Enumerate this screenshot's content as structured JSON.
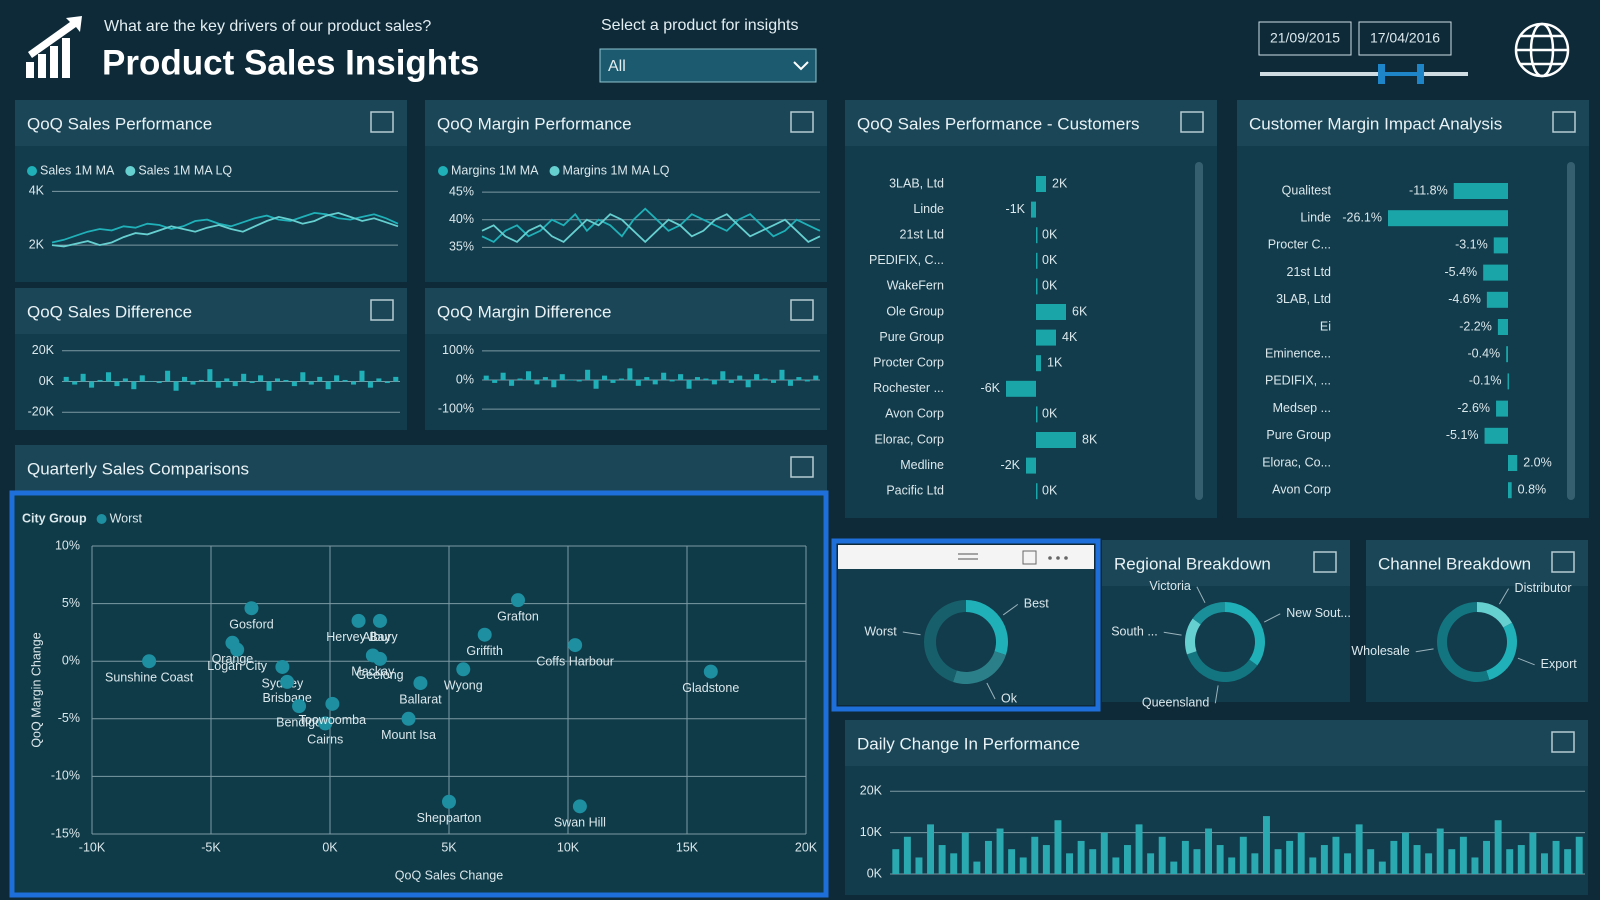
{
  "header": {
    "question": "What are the key drivers of our product sales?",
    "title": "Product Sales Insights",
    "filter_label": "Select a product for insights",
    "filter_value": "All",
    "date_start": "21/09/2015",
    "date_end": "17/04/2016"
  },
  "chart_data": [
    {
      "type": "line",
      "title": "QoQ Sales Performance",
      "ylim": [
        1000,
        4500
      ],
      "yticks": [
        {
          "value": 2000,
          "label": "2K"
        },
        {
          "value": 4000,
          "label": "4K"
        }
      ],
      "series": [
        {
          "name": "Sales 1M MA",
          "color": "#1fb0b8",
          "values": [
            2100,
            2200,
            2350,
            2500,
            2600,
            2550,
            2700,
            2650,
            2800,
            2750,
            2600,
            2700,
            2900,
            2950,
            2800,
            2700,
            2850,
            3000,
            3100,
            2950,
            2900,
            3050,
            3200,
            3150,
            3000,
            2950,
            3050,
            3150,
            3000,
            2800
          ]
        },
        {
          "name": "Sales 1M MA LQ",
          "color": "#66cfd0",
          "values": [
            2000,
            1950,
            2050,
            2150,
            2000,
            2100,
            2300,
            2450,
            2400,
            2550,
            2700,
            2600,
            2500,
            2650,
            2750,
            2600,
            2500,
            2700,
            2900,
            3050,
            2950,
            2800,
            2900,
            3100,
            3200,
            3050,
            2900,
            3000,
            2850,
            2700
          ]
        }
      ]
    },
    {
      "type": "line",
      "title": "QoQ Margin Performance",
      "ylim": [
        32,
        47
      ],
      "yticks": [
        {
          "value": 35,
          "label": "35%"
        },
        {
          "value": 40,
          "label": "40%"
        },
        {
          "value": 45,
          "label": "45%"
        }
      ],
      "series": [
        {
          "name": "Margins 1M MA",
          "color": "#1fb0b8",
          "values": [
            37,
            36,
            38,
            39,
            37,
            38,
            40,
            39,
            41,
            38,
            40,
            39,
            37,
            40,
            42,
            40,
            38,
            39,
            41,
            40,
            39,
            38,
            40,
            41,
            39,
            37,
            38,
            40,
            39,
            38
          ]
        },
        {
          "name": "Margins 1M MA LQ",
          "color": "#66cfd0",
          "values": [
            38,
            39,
            37,
            36,
            38,
            39,
            37,
            36,
            38,
            40,
            39,
            41,
            40,
            38,
            36,
            38,
            40,
            39,
            37,
            38,
            40,
            41,
            39,
            37,
            38,
            39,
            40,
            38,
            36,
            37
          ]
        }
      ]
    },
    {
      "type": "bar",
      "title": "QoQ Sales Difference",
      "color": "#1fb0b8",
      "ylim": [
        -25000,
        25000
      ],
      "yticks": [
        {
          "value": -20000,
          "label": "-20K"
        },
        {
          "value": 0,
          "label": "0K"
        },
        {
          "value": 20000,
          "label": "20K"
        }
      ],
      "values": [
        3000,
        -2000,
        5000,
        -4000,
        1000,
        6000,
        -3000,
        2000,
        -5000,
        4000,
        0,
        -1000,
        7000,
        -6000,
        3000,
        -2000,
        1000,
        8000,
        -4000,
        2000,
        -3000,
        5000,
        -1000,
        4000,
        -6000,
        2000,
        1000,
        -3000,
        6000,
        -2000,
        3000,
        -5000,
        4000,
        1000,
        -2000,
        7000,
        -4000,
        2000,
        -1000,
        3000
      ]
    },
    {
      "type": "bar",
      "title": "QoQ Margin Difference",
      "color": "#1fb0b8",
      "ylim": [
        -120,
        120
      ],
      "yticks": [
        {
          "value": -100,
          "label": "-100%"
        },
        {
          "value": 0,
          "label": "0%"
        },
        {
          "value": 100,
          "label": "100%"
        }
      ],
      "values": [
        15,
        -10,
        25,
        -20,
        5,
        30,
        -15,
        10,
        -25,
        20,
        0,
        -5,
        35,
        -30,
        15,
        -10,
        5,
        40,
        -20,
        10,
        -15,
        25,
        -5,
        20,
        -30,
        10,
        5,
        -15,
        30,
        -10,
        15,
        -25,
        20,
        5,
        -10,
        35,
        -20,
        10,
        -5,
        15
      ]
    },
    {
      "type": "hbar",
      "title": "QoQ Sales Performance - Customers",
      "color": "#1aa5a8",
      "categories": [
        "3LAB, Ltd",
        "Linde",
        "21st Ltd",
        "PEDIFIX, C...",
        "WakeFern",
        "Ole Group",
        "Pure Group",
        "Procter Corp",
        "Rochester ...",
        "Avon Corp",
        "Elorac, Corp",
        "Medline",
        "Pacific Ltd"
      ],
      "values": [
        2000,
        -1000,
        0,
        0,
        0,
        6000,
        4000,
        1000,
        -6000,
        0,
        8000,
        -2000,
        0
      ],
      "value_labels": [
        "2K",
        "-1K",
        "0K",
        "0K",
        "0K",
        "6K",
        "4K",
        "1K",
        "-6K",
        "0K",
        "8K",
        "-2K",
        "0K"
      ]
    },
    {
      "type": "hbar",
      "title": "Customer Margin Impact Analysis",
      "color": "#1aa5a8",
      "categories": [
        "Qualitest",
        "Linde",
        "Procter C...",
        "21st Ltd",
        "3LAB, Ltd",
        "Ei",
        "Eminence...",
        "PEDIFIX, ...",
        "Medsep ...",
        "Pure Group",
        "Elorac, Co...",
        "Avon Corp"
      ],
      "values": [
        -11.8,
        -26.1,
        -3.1,
        -5.4,
        -4.6,
        -2.2,
        -0.4,
        -0.1,
        -2.6,
        -5.1,
        2.0,
        0.8
      ],
      "value_labels": [
        "-11.8%",
        "-26.1%",
        "-3.1%",
        "-5.4%",
        "-4.6%",
        "-2.2%",
        "-0.4%",
        "-0.1%",
        "-2.6%",
        "-5.1%",
        "2.0%",
        "0.8%"
      ]
    },
    {
      "type": "scatter",
      "title": "Quarterly Sales Comparisons",
      "legend_title": "City Group",
      "color": "#1d8fa0",
      "series_name": "Worst",
      "xlabel": "QoQ Sales Change",
      "ylabel": "QoQ Margin Change",
      "xlim": [
        -10000,
        20000
      ],
      "xticks": [
        {
          "value": -10000,
          "label": "-10K"
        },
        {
          "value": -5000,
          "label": "-5K"
        },
        {
          "value": 0,
          "label": "0K"
        },
        {
          "value": 5000,
          "label": "5K"
        },
        {
          "value": 10000,
          "label": "10K"
        },
        {
          "value": 15000,
          "label": "15K"
        },
        {
          "value": 20000,
          "label": "20K"
        }
      ],
      "ylim": [
        -15,
        10
      ],
      "yticks": [
        {
          "value": -15,
          "label": "-15%"
        },
        {
          "value": -10,
          "label": "-10%"
        },
        {
          "value": -5,
          "label": "-5%"
        },
        {
          "value": 0,
          "label": "0%"
        },
        {
          "value": 5,
          "label": "5%"
        },
        {
          "value": 10,
          "label": "10%"
        }
      ],
      "point_labels": [
        "Gosford",
        "Orange",
        "Logan City",
        "Sunshine Coast",
        "Sydney",
        "Brisbane",
        "Bendigo",
        "Cairns",
        "Toowoomba",
        "Hervey Bay",
        "Albury",
        "Mackay",
        "Geelong",
        "Griffith",
        "Grafton",
        "Wyong",
        "Ballarat",
        "Mount Isa",
        "Coffs Harbour",
        "Gladstone",
        "Shepparton",
        "Swan Hill"
      ],
      "x": [
        -3300,
        -4100,
        -3900,
        -7600,
        -2000,
        -1800,
        -1300,
        -200,
        100,
        1200,
        2100,
        1800,
        2100,
        6500,
        7900,
        5600,
        3800,
        3300,
        10300,
        16000,
        5000,
        10500
      ],
      "values": [
        4.6,
        1.6,
        1.0,
        0,
        -0.5,
        -1.8,
        -3.9,
        -5.4,
        -3.7,
        3.5,
        3.5,
        0.5,
        0.2,
        2.3,
        5.3,
        -0.7,
        -1.9,
        -5.0,
        1.4,
        -0.9,
        -12.2,
        -12.6
      ]
    },
    {
      "type": "pie",
      "categories": [
        "Best",
        "Ok",
        "Worst"
      ],
      "values": [
        30,
        25,
        45
      ],
      "colors": [
        "#1fb0b8",
        "#2b7f88",
        "#175f6a"
      ]
    },
    {
      "type": "pie",
      "title": "Regional Breakdown",
      "categories": [
        "New Sout...",
        "Queensland",
        "South ...",
        "Victoria"
      ],
      "values": [
        35,
        35,
        15,
        15
      ],
      "colors": [
        "#1fb0b8",
        "#127580",
        "#66cfd0",
        "#1a8f99"
      ]
    },
    {
      "type": "pie",
      "title": "Channel Breakdown",
      "categories": [
        "Distributor",
        "Export",
        "Wholesale"
      ],
      "values": [
        17,
        28,
        55
      ],
      "colors": [
        "#66cfd0",
        "#1fb0b8",
        "#127580"
      ]
    },
    {
      "type": "bar",
      "title": "Daily Change In Performance",
      "color": "#2aa9b0",
      "ylim": [
        0,
        22000
      ],
      "yticks": [
        {
          "value": 0,
          "label": "0K"
        },
        {
          "value": 10000,
          "label": "10K"
        },
        {
          "value": 20000,
          "label": "20K"
        }
      ],
      "values": [
        6000,
        9000,
        4000,
        12000,
        7000,
        5000,
        10000,
        3000,
        8000,
        11000,
        6000,
        4000,
        9000,
        7000,
        13000,
        5000,
        8000,
        6000,
        10000,
        4000,
        7000,
        12000,
        5000,
        9000,
        3000,
        8000,
        6000,
        11000,
        7000,
        4000,
        9000,
        5000,
        14000,
        6000,
        8000,
        10000,
        4000,
        7000,
        9000,
        5000,
        12000,
        6000,
        3000,
        8000,
        10000,
        7000,
        5000,
        11000,
        6000,
        9000,
        4000,
        8000,
        13000,
        6000,
        7000,
        10000,
        5000,
        8000,
        6000,
        9000
      ]
    }
  ]
}
